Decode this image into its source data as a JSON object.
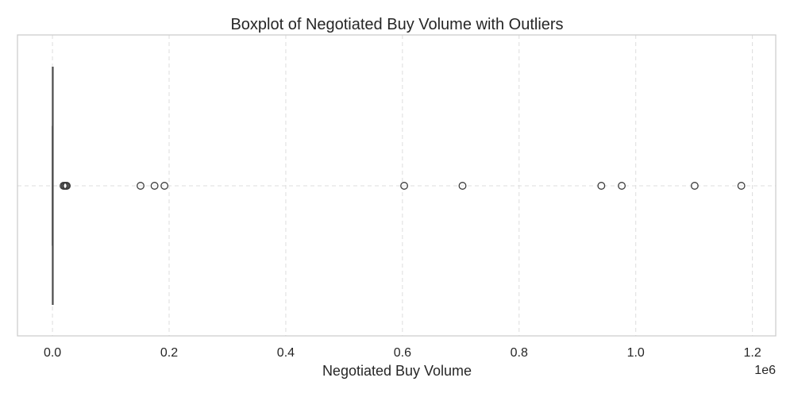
{
  "chart_data": {
    "type": "boxplot",
    "orientation": "horizontal",
    "title": "Boxplot of Negotiated Buy Volume with Outliers",
    "xlabel": "Negotiated Buy Volume",
    "ylabel": "",
    "x_multiplier_label": "1e6",
    "xlim": [
      -60000,
      1240000
    ],
    "x_ticks": [
      0,
      200000,
      400000,
      600000,
      800000,
      1000000,
      1200000
    ],
    "x_tick_labels": [
      "0.0",
      "0.2",
      "0.4",
      "0.6",
      "0.8",
      "1.0",
      "1.2"
    ],
    "grid": true,
    "grid_style": "dashed",
    "box": {
      "min": 0,
      "q1": 0,
      "median": 0,
      "q3": 0,
      "whisker_max": 1000
    },
    "outliers": [
      19000,
      21000,
      23000,
      24500,
      151000,
      175000,
      192000,
      603000,
      703000,
      941000,
      976000,
      1101000,
      1181000
    ],
    "colors": {
      "box": "#4d4d4d",
      "outlier_edge": "#3d3d3d",
      "grid": "#dddddd",
      "frame": "#cccccc",
      "text": "#262626"
    }
  }
}
